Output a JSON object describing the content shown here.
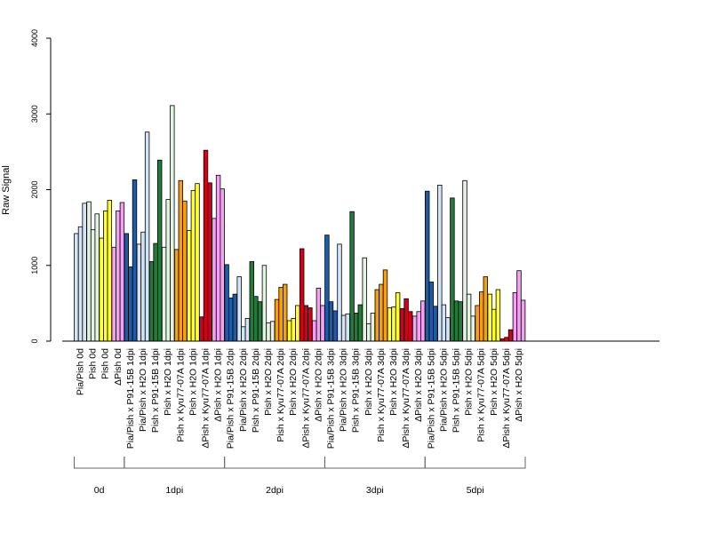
{
  "chart_data": {
    "type": "bar",
    "ylabel": "Raw Signal",
    "ylim": [
      0,
      4000
    ],
    "yticks": [
      0,
      1000,
      2000,
      3000,
      4000
    ],
    "groups": [
      {
        "label": "0d",
        "color": "#d3e4f7",
        "values": [
          1420,
          1510,
          1820
        ]
      },
      {
        "label": "0d",
        "color": "#e3f3e1",
        "values": [
          1840,
          1470,
          1680
        ]
      },
      {
        "label": "0d",
        "color": "#ffff33",
        "values": [
          1360,
          1720,
          1860
        ]
      },
      {
        "label": "0d",
        "color": "#f5a0f2",
        "values": [
          1240,
          1720,
          1830
        ]
      },
      {
        "label": "1dpi",
        "color": "#1f5ca8",
        "values": [
          1420,
          980,
          2130
        ]
      },
      {
        "label": "1dpi",
        "color": "#d3e4f7",
        "values": [
          1280,
          1440,
          2760
        ]
      },
      {
        "label": "1dpi",
        "color": "#237a3a",
        "values": [
          1050,
          1290,
          2390
        ]
      },
      {
        "label": "1dpi",
        "color": "#e3f3e1",
        "values": [
          1240,
          1870,
          3110
        ]
      },
      {
        "label": "1dpi",
        "color": "#f5a00f",
        "values": [
          1210,
          2120,
          1850
        ]
      },
      {
        "label": "1dpi",
        "color": "#ffff33",
        "values": [
          1460,
          1990,
          2080
        ]
      },
      {
        "label": "1dpi",
        "color": "#d0021b",
        "values": [
          320,
          2520,
          2090
        ]
      },
      {
        "label": "1dpi",
        "color": "#f5a0f2",
        "values": [
          1620,
          2190,
          2010
        ]
      },
      {
        "label": "2dpi",
        "color": "#1f5ca8",
        "values": [
          1010,
          570,
          620
        ]
      },
      {
        "label": "2dpi",
        "color": "#d3e4f7",
        "values": [
          850,
          190,
          300
        ]
      },
      {
        "label": "2dpi",
        "color": "#237a3a",
        "values": [
          1050,
          590,
          520
        ]
      },
      {
        "label": "2dpi",
        "color": "#e3f3e1",
        "values": [
          1000,
          240,
          260
        ]
      },
      {
        "label": "2dpi",
        "color": "#f5a00f",
        "values": [
          550,
          710,
          750
        ]
      },
      {
        "label": "2dpi",
        "color": "#ffff33",
        "values": [
          270,
          300,
          470
        ]
      },
      {
        "label": "2dpi",
        "color": "#d0021b",
        "values": [
          1220,
          470,
          440
        ]
      },
      {
        "label": "2dpi",
        "color": "#f5a0f2",
        "values": [
          270,
          700,
          470
        ]
      },
      {
        "label": "3dpi",
        "color": "#1f5ca8",
        "values": [
          1400,
          520,
          400
        ]
      },
      {
        "label": "3dpi",
        "color": "#d3e4f7",
        "values": [
          1280,
          340,
          360
        ]
      },
      {
        "label": "3dpi",
        "color": "#237a3a",
        "values": [
          1710,
          370,
          480
        ]
      },
      {
        "label": "3dpi",
        "color": "#e3f3e1",
        "values": [
          1100,
          230,
          370
        ]
      },
      {
        "label": "3dpi",
        "color": "#f5a00f",
        "values": [
          680,
          750,
          940
        ]
      },
      {
        "label": "3dpi",
        "color": "#ffff33",
        "values": [
          440,
          450,
          640
        ]
      },
      {
        "label": "3dpi",
        "color": "#d0021b",
        "values": [
          430,
          560,
          390
        ]
      },
      {
        "label": "3dpi",
        "color": "#f5a0f2",
        "values": [
          330,
          390,
          530
        ]
      },
      {
        "label": "5dpi",
        "color": "#1f5ca8",
        "values": [
          1980,
          780,
          460
        ]
      },
      {
        "label": "5dpi",
        "color": "#d3e4f7",
        "values": [
          2060,
          480,
          310
        ]
      },
      {
        "label": "5dpi",
        "color": "#237a3a",
        "values": [
          1890,
          530,
          520
        ]
      },
      {
        "label": "5dpi",
        "color": "#e3f3e1",
        "values": [
          2120,
          620,
          330
        ]
      },
      {
        "label": "5dpi",
        "color": "#f5a00f",
        "values": [
          470,
          650,
          850
        ]
      },
      {
        "label": "5dpi",
        "color": "#ffff33",
        "values": [
          620,
          420,
          680
        ]
      },
      {
        "label": "5dpi",
        "color": "#d0021b",
        "values": [
          30,
          50,
          150
        ]
      },
      {
        "label": "5dpi",
        "color": "#f5a0f2",
        "values": [
          640,
          930,
          540
        ]
      }
    ],
    "categories": [
      "Pia/Pish 0d",
      "Pish 0d",
      "Pish 0d",
      "ΔPish 0d",
      "Pia/Pish x P91-15B 1dpi",
      "Pia/Pish x H2O 1dpi",
      "Pish x P91-15B 1dpi",
      "Pish x H2O 1dpi",
      "Pish x Kyu77-07A 1dpi",
      "Pish x H2O 1dpi",
      "ΔPish x Kyu77-07A 1dpi",
      "ΔPish x H2O 1dpi",
      "Pia/Pish x P91-15B 2dpi",
      "Pia/Pish x H2O 2dpi",
      "Pish x P91-15B 2dpi",
      "Pish x H2O 2dpi",
      "Pish x Kyu77-07A 2dpi",
      "Pish x H2O 2dpi",
      "ΔPish x Kyu77-07A 2dpi",
      "ΔPish x H2O 2dpi",
      "Pia/Pish x P91-15B 3dpi",
      "Pia/Pish x H2O 3dpi",
      "Pish x P91-15B 3dpi",
      "Pish x H2O 3dpi",
      "Pish x Kyu77-07A 3dpi",
      "Pish x H2O 3dpi",
      "ΔPish x Kyu77-07A 3dpi",
      "ΔPish x H2O 3dpi",
      "Pia/Pish x P91-15B 5dpi",
      "Pia/Pish x H2O 5dpi",
      "Pish x P91-15B 5dpi",
      "Pish x H2O 5dpi",
      "Pish x Kyu77-07A 5dpi",
      "Pish x H2O 5dpi",
      "ΔPish x Kyu77-07A 5dpi",
      "ΔPish x H2O 5dpi"
    ],
    "timepoints": [
      "0d",
      "1dpi",
      "2dpi",
      "3dpi",
      "5dpi"
    ]
  }
}
